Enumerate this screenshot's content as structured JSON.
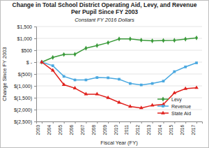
{
  "chart_data": {
    "type": "line",
    "title": "Change in Total School District Operating Aid, Levy, and Revenue Per Pupil Since FY 2003",
    "subtitle": "Constant FY 2016 Dollars",
    "x_label": "Fiscal Year (FY)",
    "y_label": "Change Since FY 2003",
    "categories": [
      "2003",
      "2004",
      "2005",
      "2006",
      "2007",
      "2008",
      "2009",
      "2010",
      "2011",
      "2012",
      "2013",
      "2014",
      "2015",
      "2016",
      "2017"
    ],
    "series": [
      {
        "name": "Levy",
        "color": "#3a9a3a",
        "marker": "diamond",
        "values": [
          0,
          200,
          320,
          330,
          590,
          700,
          820,
          980,
          980,
          930,
          900,
          910,
          920,
          970,
          1020
        ]
      },
      {
        "name": "Revenue",
        "color": "#4aa8e0",
        "marker": "square",
        "values": [
          0,
          -150,
          -600,
          -750,
          -750,
          -650,
          -660,
          -720,
          -900,
          -960,
          -900,
          -800,
          -400,
          -200,
          -30
        ]
      },
      {
        "name": "State Aid",
        "color": "#e0201c",
        "marker": "triangle",
        "values": [
          0,
          -350,
          -950,
          -1100,
          -1350,
          -1350,
          -1500,
          -1700,
          -1870,
          -1930,
          -1820,
          -1780,
          -1300,
          -1120,
          -1080
        ]
      }
    ],
    "ylim": [
      -2500,
      1500
    ],
    "yticks": [
      {
        "value": 1500,
        "label": "$1,500"
      },
      {
        "value": 1000,
        "label": "$1,000"
      },
      {
        "value": 500,
        "label": "$500"
      },
      {
        "value": 0,
        "label": "$ -"
      },
      {
        "value": -500,
        "label": "$(500)"
      },
      {
        "value": -1000,
        "label": "$(1,000)"
      },
      {
        "value": -1500,
        "label": "$(1,500)"
      },
      {
        "value": -2000,
        "label": "$(2,000)"
      },
      {
        "value": -2500,
        "label": "$(2,500)"
      }
    ],
    "grid": true,
    "legend": "lower right"
  }
}
